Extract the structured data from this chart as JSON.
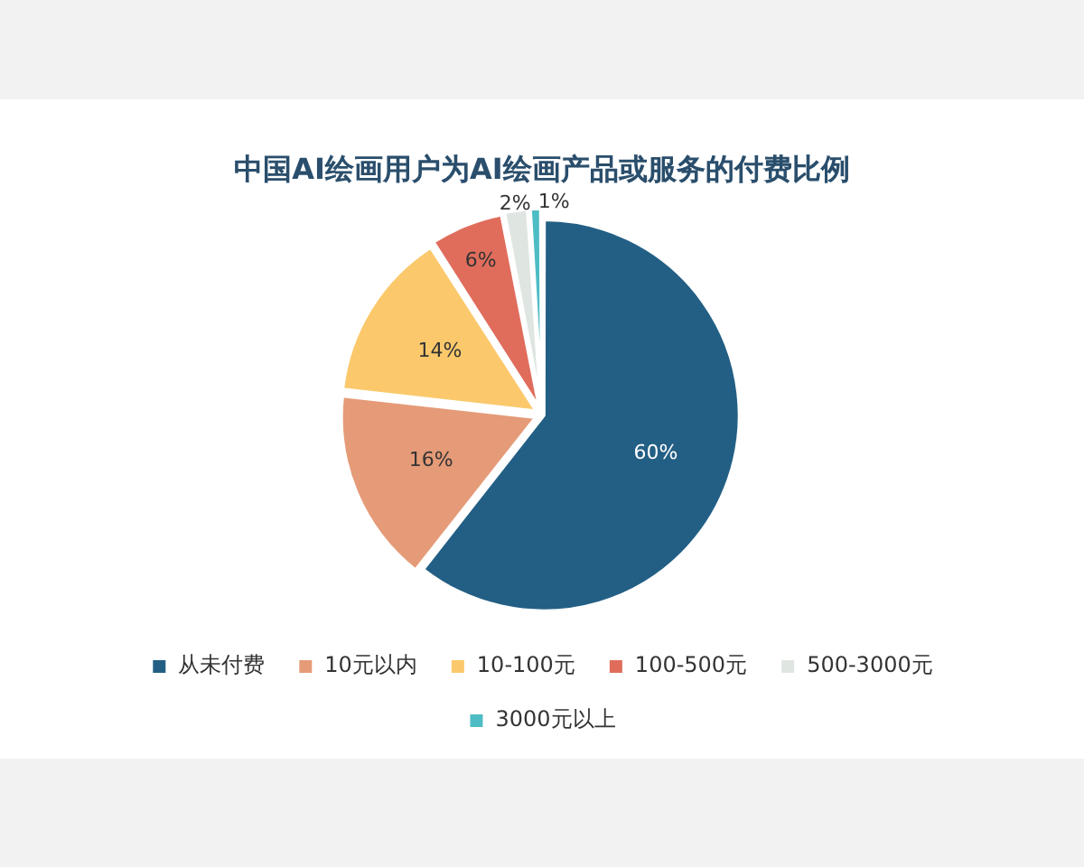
{
  "chart_data": {
    "type": "pie",
    "title": "中国AI绘画用户为AI绘画产品或服务的付费比例",
    "categories": [
      "从未付费",
      "10元以内",
      "10-100元",
      "100-500元",
      "500-3000元",
      "3000元以上"
    ],
    "values": [
      60,
      16,
      14,
      6,
      2,
      1
    ],
    "value_labels": [
      "60%",
      "16%",
      "14%",
      "6%",
      "2%",
      "1%"
    ],
    "colors": [
      "#235f85",
      "#e59b78",
      "#fbc96c",
      "#e06d5c",
      "#dfe6e1",
      "#4ebcc4"
    ],
    "legend": "bottom"
  }
}
